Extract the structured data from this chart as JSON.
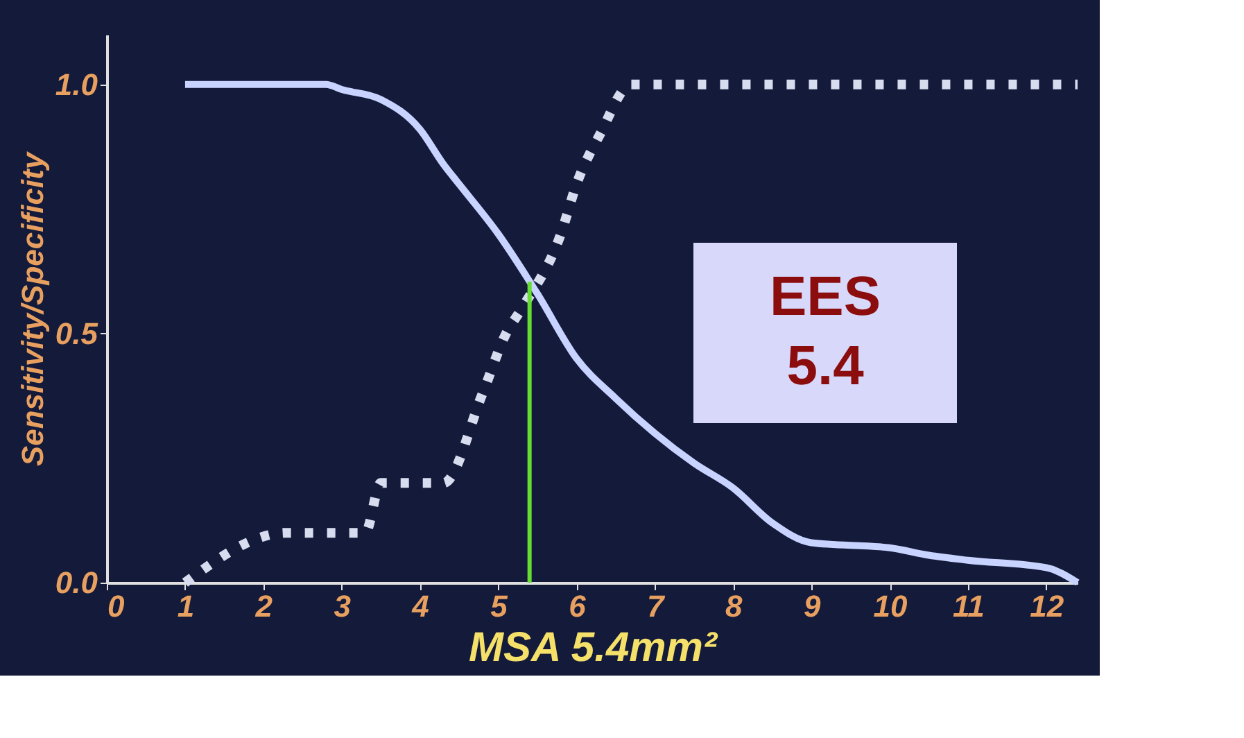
{
  "chart_data": {
    "type": "line",
    "xlabel": "MSA 5.4mm²",
    "ylabel": "Sensitivity/Specificity",
    "xlim": [
      0,
      12.4
    ],
    "xticks": [
      0,
      1,
      2,
      3,
      4,
      5,
      6,
      7,
      8,
      9,
      10,
      11,
      12
    ],
    "ylim": [
      0,
      1.1
    ],
    "yticks": [
      {
        "value": 0,
        "label": "0.0"
      },
      {
        "value": 0.5,
        "label": "0.5"
      },
      {
        "value": 1,
        "label": "1.0"
      }
    ],
    "grid": false,
    "series": [
      {
        "color": "#c8d4ff",
        "line_style": "solid",
        "x": [
          1,
          2,
          2.8,
          3,
          3.5,
          4,
          4.3,
          4.5,
          5,
          5.5,
          6,
          6.5,
          7,
          7.5,
          8,
          8.5,
          9,
          10,
          10.5,
          11,
          12,
          12.4
        ],
        "values": [
          1,
          1,
          1,
          0.99,
          0.97,
          0.91,
          0.84,
          0.8,
          0.7,
          0.58,
          0.45,
          0.37,
          0.3,
          0.24,
          0.19,
          0.12,
          0.08,
          0.07,
          0.055,
          0.045,
          0.03,
          0
        ]
      },
      {
        "color": "#d8dcef",
        "line_style": "dotted",
        "x": [
          1,
          2.3,
          3.3,
          3.5,
          4.3,
          4.8,
          5.1,
          5.3,
          5.8,
          6,
          6.3,
          6.7,
          12.4
        ],
        "values": [
          0,
          0.1,
          0.1,
          0.2,
          0.2,
          0.38,
          0.5,
          0.55,
          0.7,
          0.8,
          0.9,
          1,
          1
        ]
      }
    ],
    "ref_lines": [
      {
        "axis": "x",
        "value": 5.4,
        "color": "#66dd33"
      }
    ],
    "annotations": [
      "EES\n5.4"
    ]
  }
}
